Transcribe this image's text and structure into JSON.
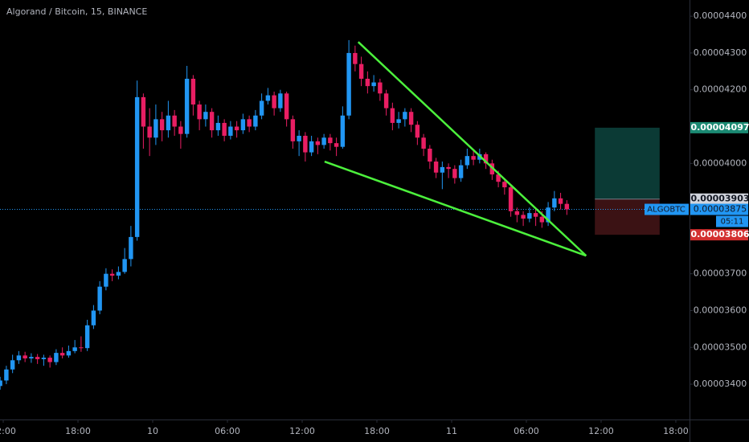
{
  "chart_data": {
    "type": "candlestick",
    "title": "Algorand / Bitcoin, 15, BINANCE",
    "symbol": "ALGOBTC",
    "countdown": "05:11",
    "up_color": "#2196f3",
    "down_color": "#e91e63",
    "xlim": [
      -0.26,
      55.1
    ],
    "ylim": [
      3.304e-05,
      4.444e-05
    ],
    "xticks": [
      {
        "value": 0,
        "label": "12:00"
      },
      {
        "value": 6,
        "label": "18:00"
      },
      {
        "value": 12,
        "label": "10"
      },
      {
        "value": 18,
        "label": "06:00"
      },
      {
        "value": 24,
        "label": "12:00"
      },
      {
        "value": 30,
        "label": "18:00"
      },
      {
        "value": 36,
        "label": "11"
      },
      {
        "value": 42,
        "label": "06:00"
      },
      {
        "value": 48,
        "label": "12:00"
      },
      {
        "value": 54,
        "label": "18:00"
      }
    ],
    "yticks": [
      {
        "value": 4.4e-05,
        "label": "0.00004400"
      },
      {
        "value": 4.3e-05,
        "label": "0.00004300"
      },
      {
        "value": 4.2e-05,
        "label": "0.00004200"
      },
      {
        "value": 4.1e-05,
        "label": "0.00004100"
      },
      {
        "value": 4e-05,
        "label": "0.00004000"
      },
      {
        "value": 3.9e-05,
        "label": "0.00003900"
      },
      {
        "value": 3.8e-05,
        "label": "0.00003800"
      },
      {
        "value": 3.7e-05,
        "label": "0.00003700"
      },
      {
        "value": 3.6e-05,
        "label": "0.00003600"
      },
      {
        "value": 3.5e-05,
        "label": "0.00003500"
      },
      {
        "value": 3.4e-05,
        "label": "0.00003400"
      }
    ],
    "x": [
      -0.25,
      0.25,
      0.75,
      1.25,
      1.75,
      2.25,
      2.75,
      3.25,
      3.75,
      4.25,
      4.75,
      5.25,
      5.75,
      6.25,
      6.75,
      7.25,
      7.75,
      8.25,
      8.75,
      9.25,
      9.75,
      10.25,
      10.75,
      11.25,
      11.75,
      12.25,
      12.75,
      13.25,
      13.75,
      14.25,
      14.75,
      15.25,
      15.75,
      16.25,
      16.75,
      17.25,
      17.75,
      18.25,
      18.75,
      19.25,
      19.75,
      20.25,
      20.75,
      21.25,
      21.75,
      22.25,
      22.75,
      23.25,
      23.75,
      24.25,
      24.75,
      25.25,
      25.75,
      26.25,
      26.75,
      27.25,
      27.75,
      28.25,
      28.75,
      29.25,
      29.75,
      30.25,
      30.75,
      31.25,
      31.75,
      32.25,
      32.75,
      33.25,
      33.75,
      34.25,
      34.75,
      35.25,
      35.75,
      36.25,
      36.75,
      37.25,
      37.75,
      38.25,
      38.75,
      39.25,
      39.75,
      40.25,
      40.75,
      41.25,
      41.75,
      42.25,
      42.75,
      43.25,
      43.75,
      44.25,
      44.75,
      45.25
    ],
    "open": [
      3.395e-05,
      3.41e-05,
      3.44e-05,
      3.465e-05,
      3.478e-05,
      3.47e-05,
      3.474e-05,
      3.468e-05,
      3.472e-05,
      3.46e-05,
      3.485e-05,
      3.478e-05,
      3.49e-05,
      3.5e-05,
      3.498e-05,
      3.56e-05,
      3.6e-05,
      3.665e-05,
      3.7e-05,
      3.695e-05,
      3.705e-05,
      3.74e-05,
      3.8e-05,
      4.18e-05,
      4.1e-05,
      4.07e-05,
      4.12e-05,
      4.09e-05,
      4.13e-05,
      4.1e-05,
      4.08e-05,
      4.23e-05,
      4.16e-05,
      4.12e-05,
      4.14e-05,
      4.09e-05,
      4.11e-05,
      4.075e-05,
      4.1e-05,
      4.09e-05,
      4.12e-05,
      4.1e-05,
      4.13e-05,
      4.17e-05,
      4.185e-05,
      4.15e-05,
      4.19e-05,
      4.12e-05,
      4.06e-05,
      4.075e-05,
      4.03e-05,
      4.06e-05,
      4.05e-05,
      4.07e-05,
      4.055e-05,
      4.045e-05,
      4.13e-05,
      4.3e-05,
      4.27e-05,
      4.23e-05,
      4.21e-05,
      4.22e-05,
      4.19e-05,
      4.15e-05,
      4.11e-05,
      4.12e-05,
      4.14e-05,
      4.105e-05,
      4.07e-05,
      4.04e-05,
      4.005e-05,
      3.975e-05,
      3.99e-05,
      3.985e-05,
      3.96e-05,
      3.995e-05,
      4.02e-05,
      4.01e-05,
      4.025e-05,
      4e-05,
      3.97e-05,
      3.95e-05,
      3.935e-05,
      3.87e-05,
      3.86e-05,
      3.85e-05,
      3.865e-05,
      3.855e-05,
      3.84e-05,
      3.88e-05,
      3.905e-05,
      3.89e-05
    ],
    "high": [
      3.42e-05,
      3.45e-05,
      3.48e-05,
      3.49e-05,
      3.488e-05,
      3.484e-05,
      3.482e-05,
      3.48e-05,
      3.478e-05,
      3.495e-05,
      3.5e-05,
      3.505e-05,
      3.52e-05,
      3.53e-05,
      3.575e-05,
      3.615e-05,
      3.68e-05,
      3.715e-05,
      3.712e-05,
      3.72e-05,
      3.77e-05,
      3.83e-05,
      4.225e-05,
      4.19e-05,
      4.15e-05,
      4.16e-05,
      4.14e-05,
      4.17e-05,
      4.145e-05,
      4.115e-05,
      4.265e-05,
      4.24e-05,
      4.17e-05,
      4.16e-05,
      4.15e-05,
      4.13e-05,
      4.12e-05,
      4.115e-05,
      4.115e-05,
      4.135e-05,
      4.13e-05,
      4.145e-05,
      4.19e-05,
      4.205e-05,
      4.195e-05,
      4.2e-05,
      4.195e-05,
      4.13e-05,
      4.09e-05,
      4.085e-05,
      4.075e-05,
      4.07e-05,
      4.08e-05,
      4.08e-05,
      4.07e-05,
      4.155e-05,
      4.335e-05,
      4.32e-05,
      4.29e-05,
      4.25e-05,
      4.24e-05,
      4.23e-05,
      4.2e-05,
      4.165e-05,
      4.14e-05,
      4.15e-05,
      4.15e-05,
      4.115e-05,
      4.08e-05,
      4.05e-05,
      4.015e-05,
      4.005e-05,
      4e-05,
      3.995e-05,
      4.01e-05,
      4.04e-05,
      4.035e-05,
      4.04e-05,
      4.03e-05,
      4.01e-05,
      3.98e-05,
      3.96e-05,
      3.94e-05,
      3.88e-05,
      3.87e-05,
      3.88e-05,
      3.875e-05,
      3.87e-05,
      3.895e-05,
      3.925e-05,
      3.92e-05,
      3.9e-05
    ],
    "low": [
      3.385e-05,
      3.4e-05,
      3.43e-05,
      3.455e-05,
      3.46e-05,
      3.458e-05,
      3.455e-05,
      3.45e-05,
      3.445e-05,
      3.452e-05,
      3.47e-05,
      3.472e-05,
      3.484e-05,
      3.488e-05,
      3.49e-05,
      3.55e-05,
      3.59e-05,
      3.655e-05,
      3.68e-05,
      3.685e-05,
      3.7e-05,
      3.72e-05,
      3.79e-05,
      4.04e-05,
      4.02e-05,
      4.05e-05,
      4.06e-05,
      4.07e-05,
      4.075e-05,
      4.04e-05,
      4.07e-05,
      4.13e-05,
      4.09e-05,
      4.1e-05,
      4.07e-05,
      4.075e-05,
      4.06e-05,
      4.065e-05,
      4.07e-05,
      4.08e-05,
      4.085e-05,
      4.09e-05,
      4.12e-05,
      4.16e-05,
      4.13e-05,
      4.14e-05,
      4.1e-05,
      4.04e-05,
      4.02e-05,
      4.005e-05,
      4.02e-05,
      4.025e-05,
      4.04e-05,
      4.035e-05,
      4.02e-05,
      4.04e-05,
      4.12e-05,
      4.25e-05,
      4.21e-05,
      4.19e-05,
      4.195e-05,
      4.17e-05,
      4.13e-05,
      4.09e-05,
      4.095e-05,
      4.1e-05,
      4.085e-05,
      4.05e-05,
      4.02e-05,
      3.985e-05,
      3.96e-05,
      3.93e-05,
      3.96e-05,
      3.945e-05,
      3.95e-05,
      3.985e-05,
      3.995e-05,
      4e-05,
      3.985e-05,
      3.955e-05,
      3.935e-05,
      3.915e-05,
      3.855e-05,
      3.84e-05,
      3.83e-05,
      3.84e-05,
      3.83e-05,
      3.825e-05,
      3.83e-05,
      3.87e-05,
      3.875e-05,
      3.86e-05
    ],
    "close": [
      3.41e-05,
      3.44e-05,
      3.465e-05,
      3.478e-05,
      3.47e-05,
      3.474e-05,
      3.468e-05,
      3.472e-05,
      3.46e-05,
      3.485e-05,
      3.478e-05,
      3.49e-05,
      3.5e-05,
      3.498e-05,
      3.56e-05,
      3.6e-05,
      3.665e-05,
      3.7e-05,
      3.695e-05,
      3.705e-05,
      3.74e-05,
      3.8e-05,
      4.18e-05,
      4.1e-05,
      4.07e-05,
      4.12e-05,
      4.09e-05,
      4.13e-05,
      4.1e-05,
      4.08e-05,
      4.23e-05,
      4.16e-05,
      4.12e-05,
      4.14e-05,
      4.09e-05,
      4.11e-05,
      4.075e-05,
      4.1e-05,
      4.09e-05,
      4.12e-05,
      4.1e-05,
      4.13e-05,
      4.17e-05,
      4.185e-05,
      4.15e-05,
      4.19e-05,
      4.12e-05,
      4.06e-05,
      4.075e-05,
      4.03e-05,
      4.06e-05,
      4.05e-05,
      4.07e-05,
      4.055e-05,
      4.045e-05,
      4.13e-05,
      4.3e-05,
      4.27e-05,
      4.23e-05,
      4.21e-05,
      4.22e-05,
      4.19e-05,
      4.15e-05,
      4.11e-05,
      4.12e-05,
      4.14e-05,
      4.105e-05,
      4.07e-05,
      4.04e-05,
      4.005e-05,
      3.975e-05,
      3.99e-05,
      3.985e-05,
      3.96e-05,
      3.995e-05,
      4.02e-05,
      4.01e-05,
      4.025e-05,
      4e-05,
      3.97e-05,
      3.95e-05,
      3.935e-05,
      3.87e-05,
      3.86e-05,
      3.85e-05,
      3.865e-05,
      3.855e-05,
      3.84e-05,
      3.88e-05,
      3.905e-05,
      3.89e-05,
      3.875e-05
    ],
    "position": {
      "target": 4.097e-05,
      "entry": 3.903e-05,
      "stop": 3.806e-05,
      "x": [
        47.5,
        52.7
      ],
      "target_color": "#0b3a35",
      "stop_color": "#3b1214"
    },
    "trendline_color": "#4cf03c",
    "trendlines": [
      {
        "x": [
          28.5,
          46.8
        ],
        "y": [
          4.33e-05,
          3.749e-05
        ]
      },
      {
        "x": [
          25.8,
          46.8
        ],
        "y": [
          4.005e-05,
          3.749e-05
        ]
      }
    ]
  }
}
